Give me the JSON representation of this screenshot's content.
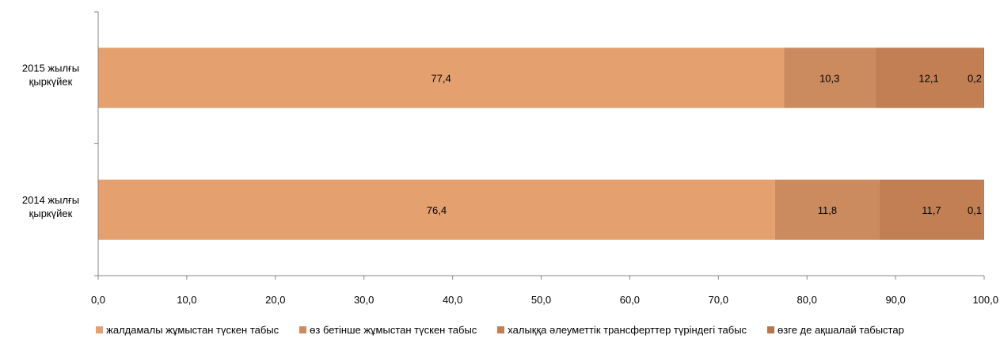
{
  "chart_data": {
    "type": "bar",
    "orientation": "horizontal",
    "stacked": true,
    "categories": [
      "2015 жылғы\nқыркүйек",
      "2014 жылғы\nқыркүйек"
    ],
    "series": [
      {
        "name": "жалдамалы жұмыстан түскен табыс",
        "values": [
          77.4,
          76.4
        ],
        "color": "#E5A06F"
      },
      {
        "name": "өз бетінше жұмыстан түскен табыс",
        "values": [
          10.3,
          11.8
        ],
        "color": "#CC8B5F"
      },
      {
        "name": "халыққа әлеуметтік трансферттер түріндегі табыс",
        "values": [
          12.1,
          11.7
        ],
        "color": "#C17F53"
      },
      {
        "name": "өзге де ақшалай табыстар",
        "values": [
          0.2,
          0.1
        ],
        "color": "#B5774B"
      }
    ],
    "x_ticks": [
      "0,0",
      "10,0",
      "20,0",
      "30,0",
      "40,0",
      "50,0",
      "60,0",
      "70,0",
      "80,0",
      "90,0",
      "100,0"
    ],
    "xlim": [
      0,
      100
    ],
    "grid": false,
    "legend_position": "bottom",
    "title": "",
    "xlabel": "",
    "ylabel": ""
  }
}
